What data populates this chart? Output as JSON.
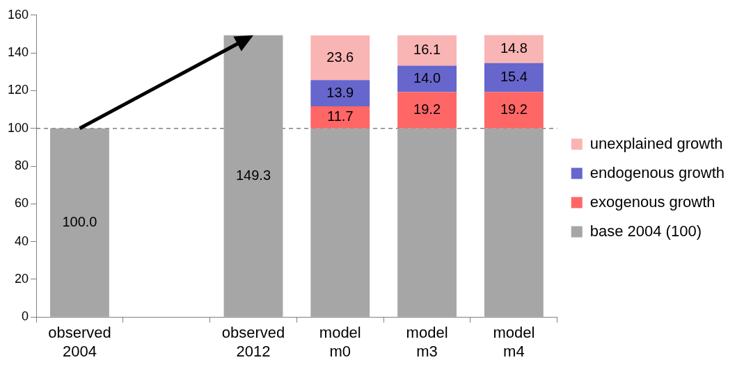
{
  "chart_data": {
    "type": "bar",
    "stacked": true,
    "categories": [
      "observed 2004",
      null,
      "observed 2012",
      "model m0",
      "model m3",
      "model m4"
    ],
    "series": [
      {
        "name": "base 2004 (100)",
        "color": "#a6a6a6",
        "values": [
          100,
          null,
          149.3,
          100,
          100,
          100
        ],
        "value_labels": [
          "100.0",
          null,
          "149.3",
          null,
          null,
          null
        ]
      },
      {
        "name": "exogenous growth",
        "color": "#ff6666",
        "values": [
          null,
          null,
          null,
          11.7,
          19.2,
          19.2
        ],
        "value_labels": [
          null,
          null,
          null,
          "11.7",
          "19.2",
          "19.2"
        ]
      },
      {
        "name": "endogenous growth",
        "color": "#6666cc",
        "values": [
          null,
          null,
          null,
          13.9,
          14.0,
          15.4
        ],
        "value_labels": [
          null,
          null,
          null,
          "13.9",
          "14.0",
          "15.4"
        ]
      },
      {
        "name": "unexplained growth",
        "color": "#f9b4b4",
        "values": [
          null,
          null,
          null,
          23.6,
          16.1,
          14.8
        ],
        "value_labels": [
          null,
          null,
          null,
          "23.6",
          "16.1",
          "14.8"
        ]
      }
    ],
    "ylim": [
      0,
      160
    ],
    "yticks": [
      0,
      20,
      40,
      60,
      80,
      100,
      120,
      140,
      160
    ],
    "grid": false,
    "legend": "right",
    "ref_lines": [
      {
        "axis": "y",
        "value": 100,
        "color": "#808080",
        "line_style": "dashed"
      }
    ]
  }
}
